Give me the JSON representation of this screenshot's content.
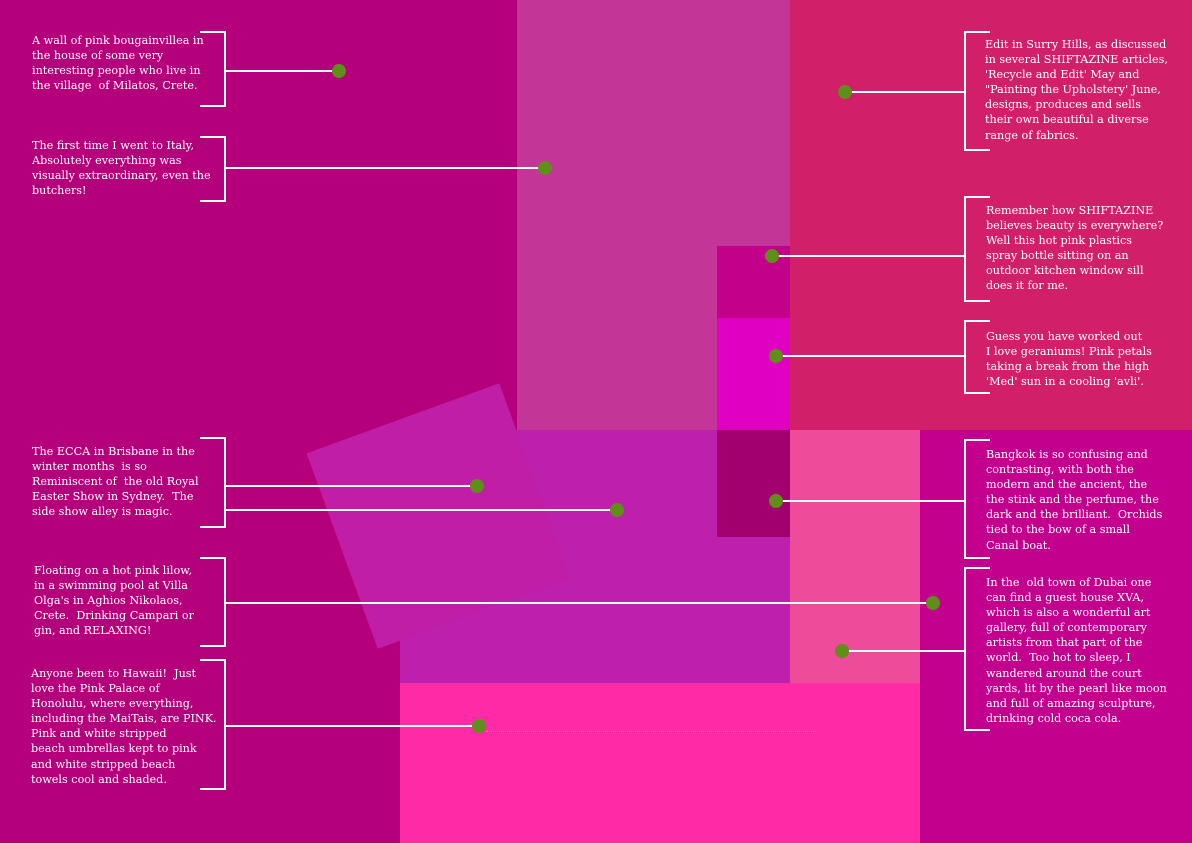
{
  "colors": {
    "background": "#b4007a",
    "accent_dot": "#5f8e19",
    "text": "#ffffff"
  },
  "captions": {
    "bougainvillea": "A wall of pink bougainvillea in\nthe house of some very\ninteresting people who live in\nthe village  of Milatos, Crete.",
    "italy": "The first time I went to Italy,\nAbsolutely everything was\nvisually extraordinary, even the\nbutchers!",
    "ecca": "The ECCA in Brisbane in the\nwinter months  is so\nReminiscent of  the old Royal\nEaster Show in Sydney.  The\nside show alley is magic.",
    "lilow": "Floating on a hot pink lilow,\nin a swimming pool at Villa\nOlga's in Aghios Nikolaos,\nCrete.  Drinking Campari or\ngin, and RELAXING!",
    "hawaii": "Anyone been to Hawaii!  Just\nlove the Pink Palace of\nHonolulu, where everything,\nincluding the MaiTais, are PINK.\nPink and white stripped\nbeach umbrellas kept to pink\nand white stripped beach\ntowels cool and shaded.",
    "surry_hills": "Edit in Surry Hills, as discussed\nin several SHIFTAZINE articles,\n'Recycle and Edit' May and\n\"Painting the Upholstery' June,\ndesigns, produces and sells\ntheir own beautiful a diverse\nrange of fabrics.",
    "spray_bottle": "Remember how SHIFTAZINE\nbelieves beauty is everywhere?\nWell this hot pink plastics\nspray bottle sitting on an\noutdoor kitchen window sill\ndoes it for me.",
    "geraniums": "Guess you have worked out\nI love geraniums! Pink petals\ntaking a break from the high\n'Med' sun in a cooling 'avli'.",
    "bangkok": "Bangkok is so confusing and\ncontrasting, with both the\nmodern and the ancient, the\nthe stink and the perfume, the\ndark and the brilliant.  Orchids\ntied to the bow of a small\nCanal boat.",
    "dubai": "In the  old town of Dubai one\ncan find a guest house XVA,\nwhich is also a wonderful art\ngallery, full of contemporary\nartists from that part of the\nworld.  Too hot to sleep, I\nwandered around the court\nyards, lit by the pearl like moon\nand full of amazing sculpture,\ndrinking cold coca cola."
  }
}
